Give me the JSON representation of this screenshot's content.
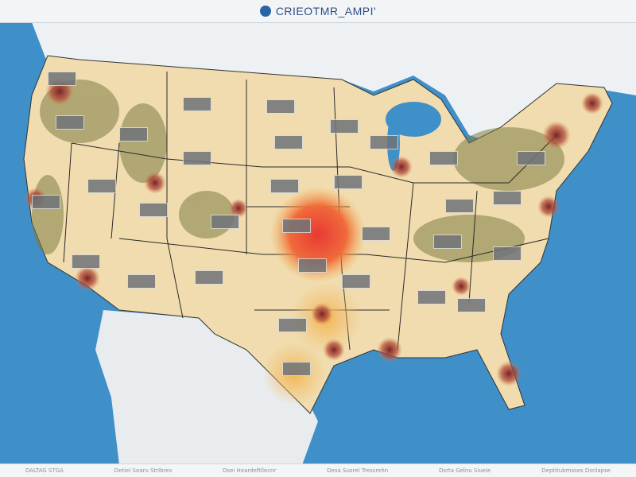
{
  "header": {
    "title": "CRIEOTMR_AMPI'",
    "logo_icon": "globe-icon"
  },
  "footer": {
    "items": [
      "DALTAG STGA",
      "Detiel Searu Strlbres",
      "Dsei Heardeftllecnr",
      "Desa Susrel Tressrehn",
      "Dsrta Gelnu Siueie",
      "Deptitubmsses Dsnlapse"
    ]
  },
  "colors": {
    "ocean": "#3f8fc9",
    "land": "#f0dcae",
    "heat_high": "#e84a3a",
    "heat_mid": "#f2a640",
    "forest": "#7d7d45",
    "label_box": "#6f7478"
  }
}
